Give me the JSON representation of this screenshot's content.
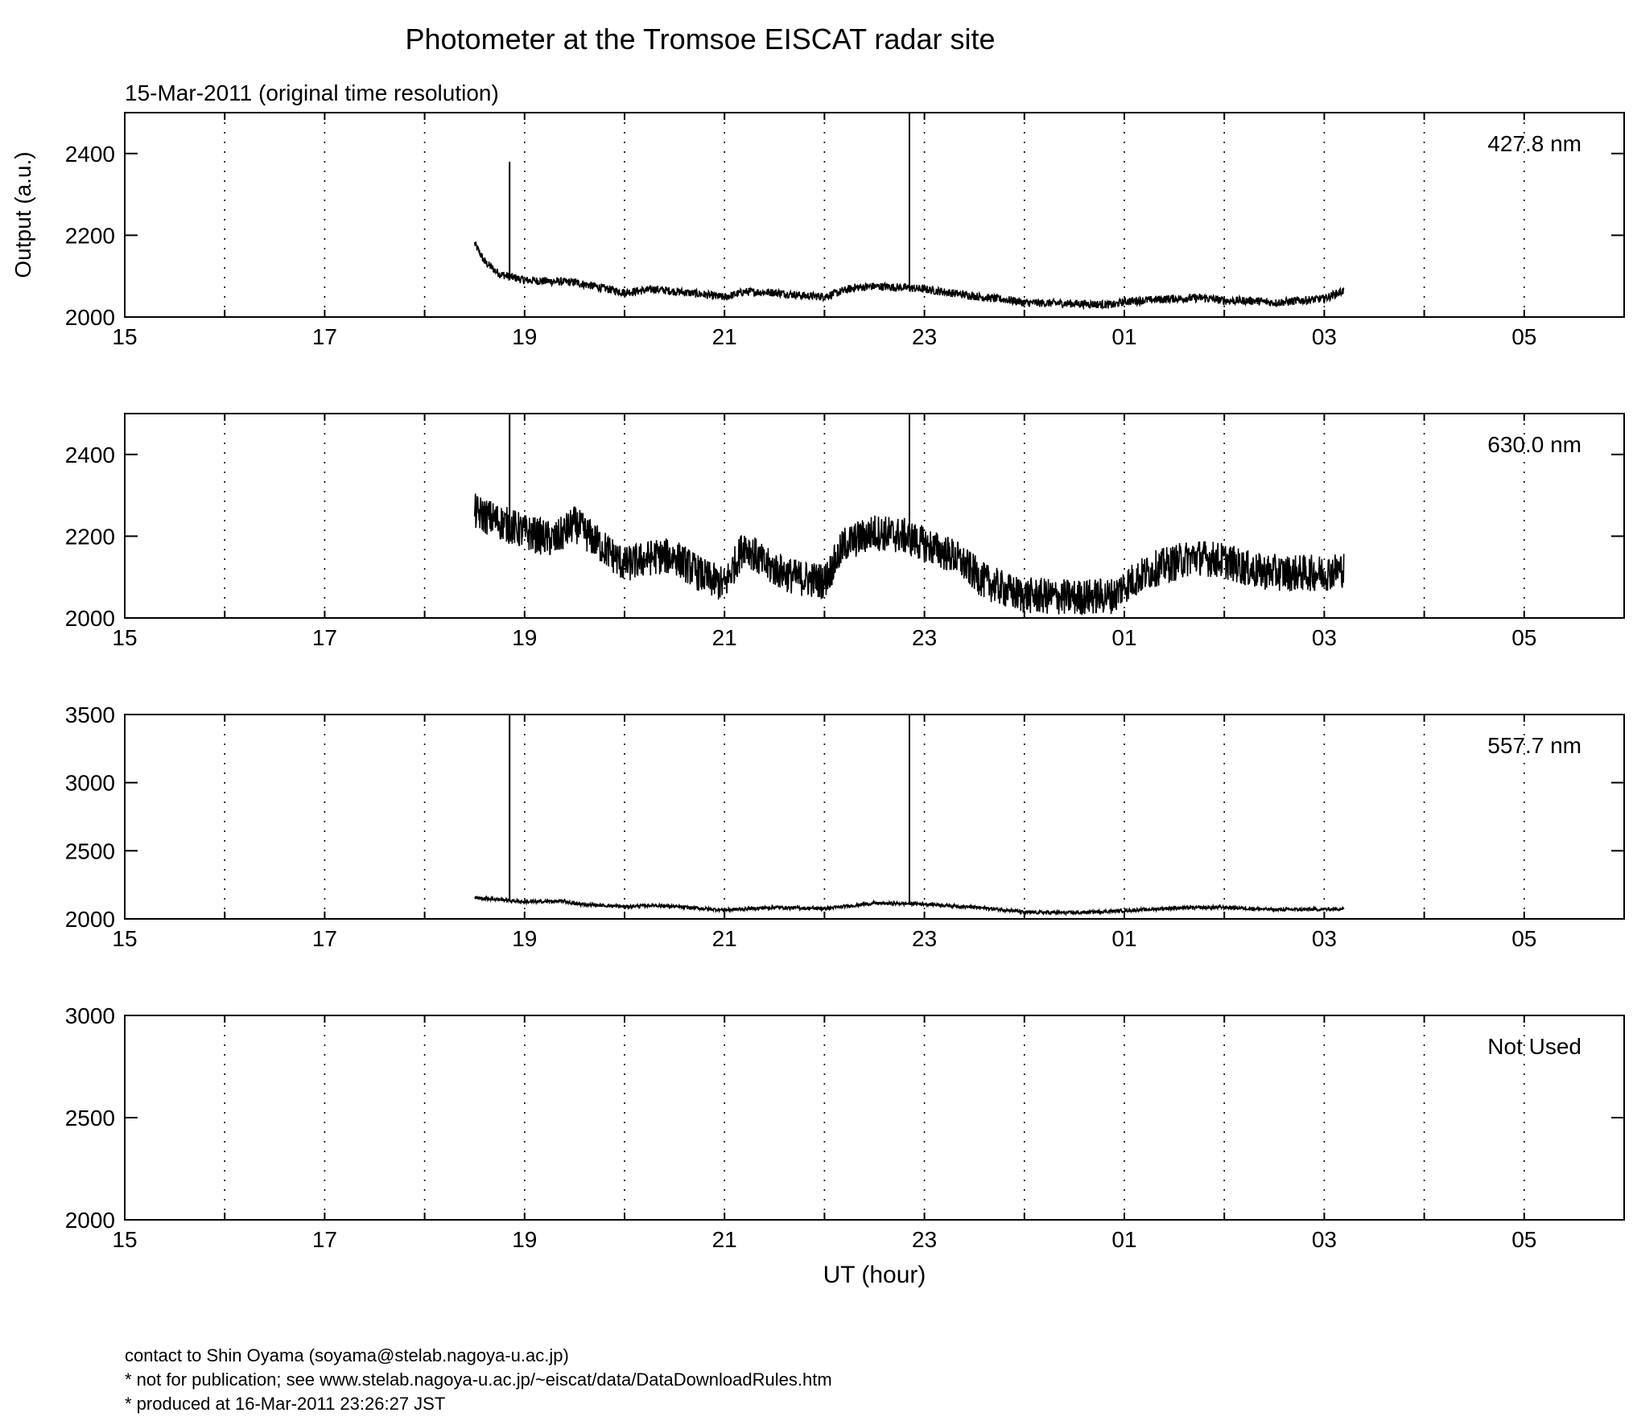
{
  "title": "Photometer at the Tromsoe EISCAT radar site",
  "subtitle": "15-Mar-2011 (original time resolution)",
  "footer": {
    "contact": "contact to Shin Oyama (soyama@stelab.nagoya-u.ac.jp)",
    "notice": "* not for publication; see www.stelab.nagoya-u.ac.jp/~eiscat/data/DataDownloadRules.htm",
    "produced": "* produced at 16-Mar-2011 23:26:27 JST"
  },
  "chart_data": [
    {
      "type": "line",
      "label": "427.8 nm",
      "ylabel": "Output (a.u.)",
      "xlabel": "",
      "x_unit": "UT hour (elapsed from 15 UT)",
      "xlim": [
        15,
        30
      ],
      "x_ticks": [
        "15",
        "17",
        "19",
        "21",
        "23",
        "01",
        "03",
        "05"
      ],
      "ylim": [
        2000,
        2500
      ],
      "y_ticks": [
        2000,
        2200,
        2400
      ],
      "grid": "vertical dotted, every hour",
      "line_color": "#000000",
      "noise_amp": 10,
      "x": [
        18.5,
        18.6,
        18.75,
        19.0,
        19.5,
        20.0,
        20.3,
        20.8,
        21.0,
        21.2,
        21.5,
        21.8,
        22.0,
        22.3,
        22.5,
        22.8,
        23.0,
        23.3,
        23.6,
        23.9,
        24.0,
        24.5,
        24.9,
        25.0,
        25.5,
        25.8,
        26.0,
        26.3,
        26.5,
        27.0,
        27.2
      ],
      "values": [
        2180,
        2135,
        2105,
        2090,
        2085,
        2060,
        2068,
        2055,
        2048,
        2062,
        2060,
        2052,
        2050,
        2072,
        2075,
        2072,
        2068,
        2058,
        2048,
        2040,
        2035,
        2033,
        2030,
        2038,
        2045,
        2047,
        2040,
        2040,
        2035,
        2045,
        2065
      ],
      "spikes": [
        {
          "x": 18.85,
          "from": 2090,
          "to": 2380
        },
        {
          "x": 22.85,
          "from": 2070,
          "to": 2500
        }
      ]
    },
    {
      "type": "line",
      "label": "630.0 nm",
      "ylabel": "",
      "xlabel": "",
      "x_unit": "UT hour (elapsed from 15 UT)",
      "xlim": [
        15,
        30
      ],
      "x_ticks": [
        "15",
        "17",
        "19",
        "21",
        "23",
        "01",
        "03",
        "05"
      ],
      "ylim": [
        2000,
        2500
      ],
      "y_ticks": [
        2000,
        2200,
        2400
      ],
      "grid": "vertical dotted, every hour",
      "line_color": "#000000",
      "noise_amp": 45,
      "x": [
        18.5,
        18.8,
        19.0,
        19.3,
        19.5,
        19.8,
        20.0,
        20.3,
        20.5,
        20.8,
        21.0,
        21.2,
        21.4,
        21.7,
        22.0,
        22.2,
        22.5,
        22.8,
        23.0,
        23.3,
        23.6,
        23.9,
        24.0,
        24.5,
        24.9,
        25.0,
        25.3,
        25.7,
        26.0,
        26.3,
        26.6,
        27.0,
        27.2
      ],
      "values": [
        2260,
        2230,
        2210,
        2190,
        2230,
        2170,
        2130,
        2150,
        2150,
        2100,
        2080,
        2180,
        2130,
        2100,
        2090,
        2180,
        2210,
        2200,
        2180,
        2150,
        2090,
        2060,
        2055,
        2050,
        2055,
        2080,
        2120,
        2150,
        2140,
        2115,
        2110,
        2110,
        2120
      ],
      "spikes": [
        {
          "x": 18.85,
          "from": 2220,
          "to": 2500
        },
        {
          "x": 22.85,
          "from": 2200,
          "to": 2500
        }
      ]
    },
    {
      "type": "line",
      "label": "557.7 nm",
      "ylabel": "",
      "xlabel": "",
      "x_unit": "UT hour (elapsed from 15 UT)",
      "xlim": [
        15,
        30
      ],
      "x_ticks": [
        "15",
        "17",
        "19",
        "21",
        "23",
        "01",
        "03",
        "05"
      ],
      "ylim": [
        2000,
        3500
      ],
      "y_ticks": [
        2000,
        2500,
        3000,
        3500
      ],
      "grid": "vertical dotted, every hour",
      "line_color": "#000000",
      "noise_amp": 12,
      "x": [
        18.5,
        18.8,
        19.0,
        19.4,
        19.5,
        20.0,
        20.3,
        20.8,
        21.0,
        21.5,
        22.0,
        22.5,
        23.0,
        23.5,
        23.9,
        24.0,
        24.5,
        25.0,
        25.5,
        26.0,
        26.5,
        27.0,
        27.2
      ],
      "values": [
        2155,
        2140,
        2125,
        2130,
        2110,
        2090,
        2100,
        2075,
        2065,
        2085,
        2075,
        2115,
        2110,
        2085,
        2060,
        2048,
        2045,
        2060,
        2080,
        2085,
        2068,
        2070,
        2075
      ],
      "spikes": [
        {
          "x": 18.85,
          "from": 2130,
          "to": 3500
        },
        {
          "x": 22.85,
          "from": 2110,
          "to": 3500
        }
      ]
    },
    {
      "type": "line",
      "label": "Not Used",
      "ylabel": "",
      "xlabel": "UT (hour)",
      "x_unit": "UT hour (elapsed from 15 UT)",
      "xlim": [
        15,
        30
      ],
      "x_ticks": [
        "15",
        "17",
        "19",
        "21",
        "23",
        "01",
        "03",
        "05"
      ],
      "ylim": [
        2000,
        3000
      ],
      "y_ticks": [
        2000,
        2500,
        3000
      ],
      "grid": "vertical dotted, every hour",
      "line_color": "#000000",
      "noise_amp": 0,
      "x": [],
      "values": [],
      "spikes": []
    }
  ]
}
